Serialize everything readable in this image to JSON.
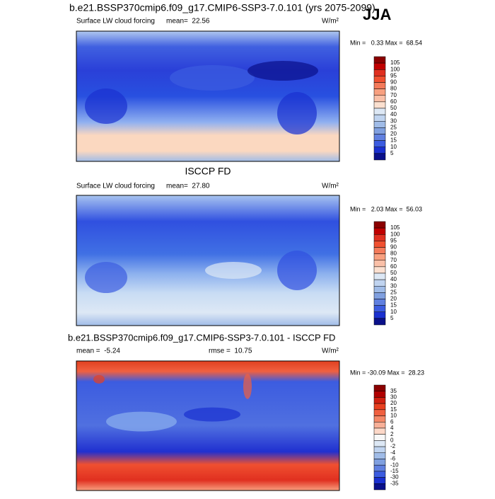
{
  "header": {
    "season": "JJA"
  },
  "panels": [
    {
      "title": "b.e21.BSSP370cmip6.f09_g17.CMIP6-SSP3-7.0.101 (yrs 2075-2099)",
      "left_label": "Surface LW cloud forcing",
      "center_label": "mean=  22.56",
      "units": "W/m²",
      "stats": "Min =   0.33 Max =  68.54",
      "colorbar": {
        "labels": [
          "105",
          "100",
          "95",
          "90",
          "80",
          "70",
          "60",
          "50",
          "40",
          "30",
          "25",
          "20",
          "15",
          "10",
          "5"
        ],
        "colors": [
          "#8b0000",
          "#c00000",
          "#e03020",
          "#f05030",
          "#f47a5a",
          "#f8a080",
          "#fac0a8",
          "#fbe0d0",
          "#dde8f5",
          "#c0d4f0",
          "#a0bce8",
          "#80a0e0",
          "#6080e0",
          "#3c5ce0",
          "#1a30d0",
          "#0a108a"
        ]
      }
    },
    {
      "title": "ISCCP FD",
      "left_label": "Surface LW cloud forcing",
      "center_label": "mean=  27.80",
      "units": "W/m²",
      "stats": "Min =   2.03 Max =  56.03",
      "colorbar": {
        "labels": [
          "105",
          "100",
          "95",
          "90",
          "80",
          "70",
          "60",
          "50",
          "40",
          "30",
          "25",
          "20",
          "15",
          "10",
          "5"
        ],
        "colors": [
          "#8b0000",
          "#c00000",
          "#e03020",
          "#f05030",
          "#f47a5a",
          "#f8a080",
          "#fac0a8",
          "#fbe0d0",
          "#dde8f5",
          "#c0d4f0",
          "#a0bce8",
          "#80a0e0",
          "#6080e0",
          "#3c5ce0",
          "#1a30d0",
          "#0a108a"
        ]
      }
    },
    {
      "title": "b.e21.BSSP370cmip6.f09_g17.CMIP6-SSP3-7.0.101 - ISCCP FD",
      "left_label": "mean =  -5.24",
      "center_label": "rmse =  10.75",
      "units": "W/m²",
      "stats": "Min = -30.09 Max =  28.23",
      "colorbar": {
        "labels": [
          "35",
          "30",
          "20",
          "15",
          "10",
          "6",
          "4",
          "2",
          "0",
          "-2",
          "-4",
          "-6",
          "-10",
          "-15",
          "-30",
          "-35"
        ],
        "colors": [
          "#8b0000",
          "#b00000",
          "#d02010",
          "#e84020",
          "#f06040",
          "#f48868",
          "#f8b098",
          "#fcd8c8",
          "#f8f8f8",
          "#dde8f5",
          "#c0d4f0",
          "#a0bce8",
          "#80a0e0",
          "#6080e0",
          "#3c5ce0",
          "#1a30d0",
          "#0a108a"
        ]
      }
    }
  ]
}
